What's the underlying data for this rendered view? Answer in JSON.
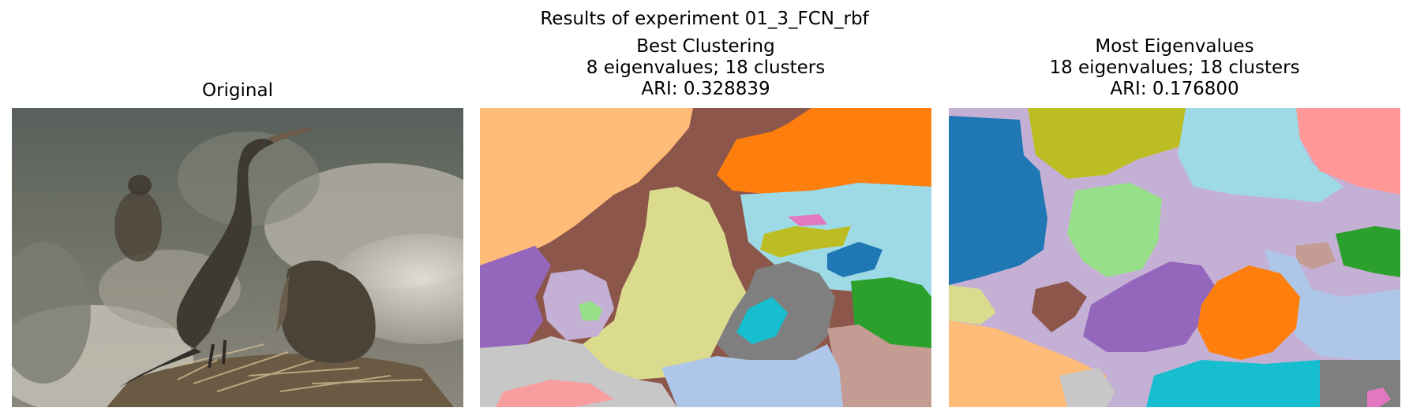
{
  "figure": {
    "suptitle": "Results of experiment 01_3_FCN_rbf"
  },
  "panels": [
    {
      "title_lines": [
        "Original"
      ]
    },
    {
      "title_lines": [
        "Best Clustering",
        "8 eigenvalues; 18 clusters",
        "ARI: 0.328839"
      ]
    },
    {
      "title_lines": [
        "Most Eigenvalues",
        "18 eigenvalues; 18 clusters",
        "ARI: 0.176800"
      ]
    }
  ],
  "colors": {
    "tab20_blue": "#1f77b4",
    "tab20_light_blue": "#aec7e8",
    "tab20_orange": "#ff7f0e",
    "tab20_light_orange": "#ffbb78",
    "tab20_green": "#2ca02c",
    "tab20_light_green": "#98df8a",
    "tab20_pink": "#ff9896",
    "tab20_purple": "#9467bd",
    "tab20_light_purple": "#c5b0d5",
    "tab20_brown": "#8c564b",
    "tab20_light_brown": "#c49c94",
    "tab20_magenta": "#e377c2",
    "tab20_gray": "#7f7f7f",
    "tab20_light_gray": "#c7c7c7",
    "tab20_olive": "#bcbd22",
    "tab20_khaki": "#dbdb8d",
    "tab20_cyan": "#17becf",
    "tab20_light_cyan": "#9edae5"
  }
}
